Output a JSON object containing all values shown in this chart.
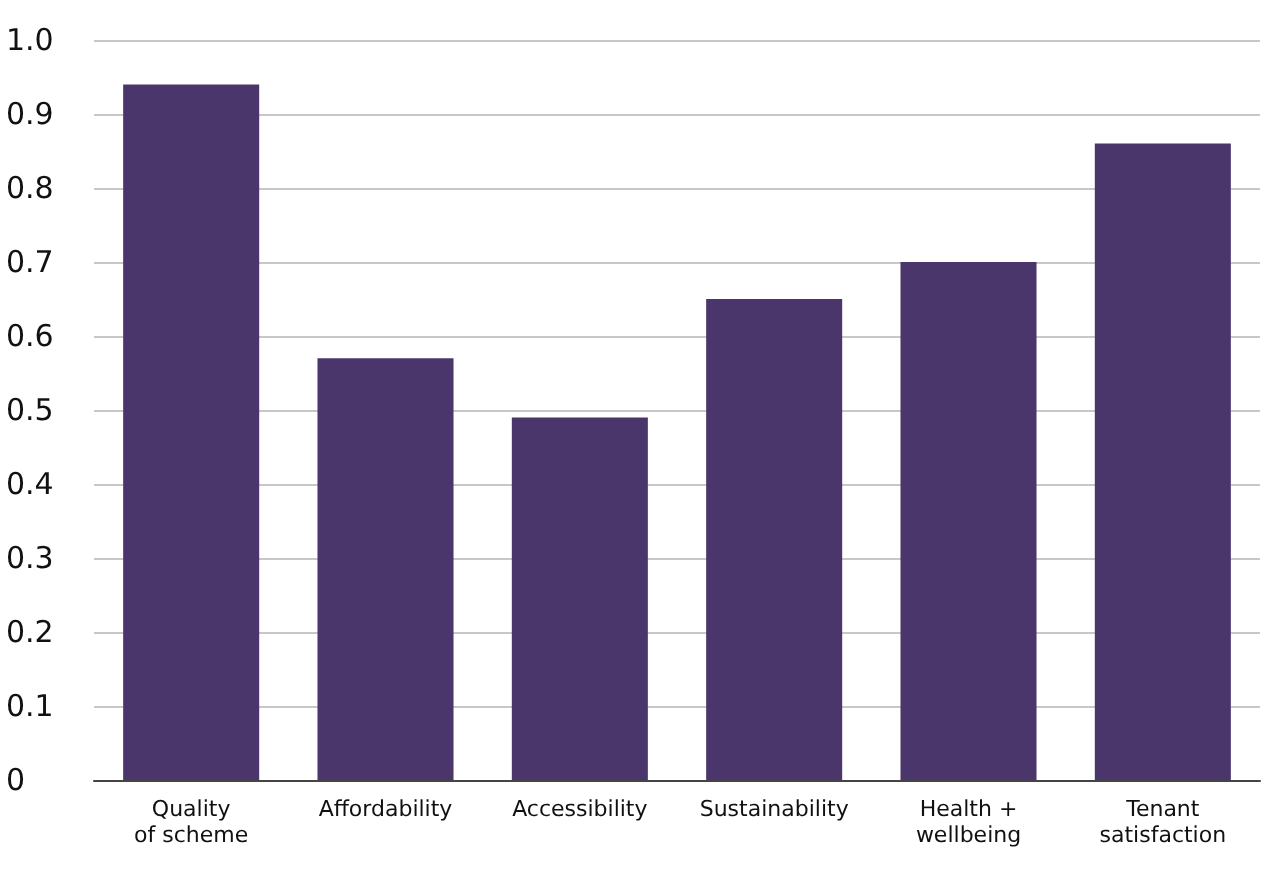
{
  "chart_data": {
    "type": "bar",
    "categories": [
      "Quality\nof scheme",
      "Affordability",
      "Accessibility",
      "Sustainability",
      "Health +\nwellbeing",
      "Tenant\nsatisfaction"
    ],
    "values": [
      0.94,
      0.57,
      0.49,
      0.65,
      0.7,
      0.86
    ],
    "color": "#4a366b",
    "ylim": [
      0,
      1
    ],
    "yticks": [
      0,
      0.1,
      0.2,
      0.3,
      0.4,
      0.5,
      0.6,
      0.7,
      0.8,
      0.9,
      {
        "value": 1,
        "label": "1.0"
      }
    ],
    "grid": "y"
  }
}
